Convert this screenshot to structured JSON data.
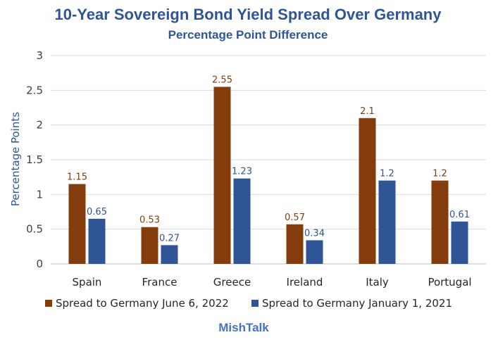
{
  "chart_data": {
    "type": "bar",
    "title": "10-Year Sovereign Bond Yield Spread Over Germany",
    "subtitle": "Percentage Point Difference",
    "ylabel": "Percentage Points",
    "xlabel": "",
    "categories": [
      "Spain",
      "France",
      "Greece",
      "Ireland",
      "Italy",
      "Portugal"
    ],
    "series": [
      {
        "name": "Spread to Germany June 6, 2022",
        "values": [
          1.15,
          0.53,
          2.55,
          0.57,
          2.1,
          1.2
        ],
        "labels": [
          "1.15",
          "0.53",
          "2.55",
          "0.57",
          "2.1",
          "1.2"
        ],
        "color": "#843c0c",
        "label_color": "#843c0c"
      },
      {
        "name": "Spread to Germany January 1, 2021",
        "values": [
          0.65,
          0.27,
          1.23,
          0.34,
          1.2,
          0.61
        ],
        "labels": [
          "0.65",
          "0.27",
          "1.23",
          "0.34",
          "1.2",
          "0.61"
        ],
        "color": "#2f5597",
        "label_color": "#2f5597"
      }
    ],
    "ylim": [
      0,
      3
    ],
    "yticks": [
      "0",
      "0.5",
      "1",
      "1.5",
      "2",
      "2.5",
      "3"
    ],
    "grid": true,
    "legend": "bottom"
  },
  "credit": "MishTalk"
}
